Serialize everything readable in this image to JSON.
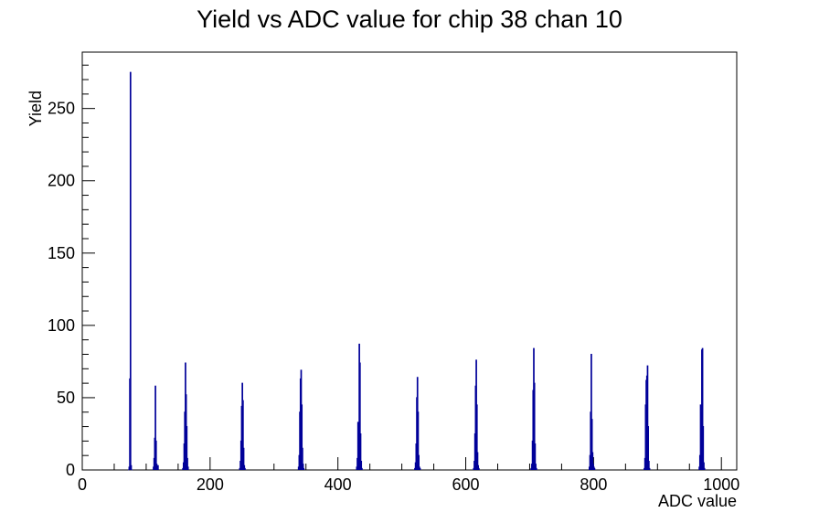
{
  "chart_data": {
    "type": "histogram",
    "title": "Yield vs ADC value for chip 38 chan 10",
    "x_label": "ADC value",
    "y_label": "Yield",
    "color": "#000099",
    "xlim": [
      0,
      1024
    ],
    "ylim": [
      0,
      289
    ],
    "xticks": [
      0,
      200,
      400,
      600,
      800,
      1000
    ],
    "xminorticks": [
      50,
      100,
      150,
      250,
      300,
      350,
      450,
      500,
      550,
      650,
      700,
      750,
      850,
      900,
      950
    ],
    "yticks": [
      0,
      50,
      100,
      150,
      200,
      250
    ],
    "yminorticks": [
      10,
      20,
      30,
      40,
      60,
      70,
      80,
      90,
      110,
      120,
      130,
      140,
      160,
      170,
      180,
      190,
      210,
      220,
      230,
      240,
      260,
      270,
      280
    ],
    "segments": [
      {
        "bins": [
          72,
          73,
          74,
          75,
          76,
          77,
          78
        ],
        "values": [
          0,
          2,
          63,
          275,
          3,
          0
        ]
      },
      {
        "bins": [
          111,
          112,
          113,
          114,
          115,
          116,
          117,
          118,
          119
        ],
        "values": [
          2,
          8,
          22,
          58,
          20,
          4,
          1,
          3
        ]
      },
      {
        "bins": [
          157,
          158,
          159,
          160,
          161,
          162,
          163,
          164,
          165,
          166
        ],
        "values": [
          1,
          5,
          18,
          40,
          74,
          52,
          30,
          8,
          2
        ]
      },
      {
        "bins": [
          246,
          247,
          248,
          249,
          250,
          251,
          252,
          253,
          254,
          255
        ],
        "values": [
          1,
          6,
          20,
          44,
          60,
          48,
          15,
          3,
          1
        ]
      },
      {
        "bins": [
          338,
          339,
          340,
          341,
          342,
          343,
          344,
          345,
          346,
          347
        ],
        "values": [
          2,
          10,
          40,
          63,
          69,
          45,
          15,
          4,
          1
        ]
      },
      {
        "bins": [
          429,
          430,
          431,
          432,
          433,
          434,
          435,
          436,
          437,
          438
        ],
        "values": [
          2,
          8,
          33,
          18,
          87,
          74,
          25,
          6,
          1
        ]
      },
      {
        "bins": [
          520,
          521,
          522,
          523,
          524,
          525,
          526,
          527,
          528,
          529
        ],
        "values": [
          1,
          5,
          18,
          50,
          64,
          40,
          10,
          2,
          1
        ]
      },
      {
        "bins": [
          612,
          613,
          614,
          615,
          616,
          617,
          618,
          619,
          620,
          621
        ],
        "values": [
          1,
          6,
          25,
          58,
          76,
          45,
          12,
          3,
          1
        ]
      },
      {
        "bins": [
          702,
          703,
          704,
          705,
          706,
          707,
          708,
          709,
          710,
          711
        ],
        "values": [
          1,
          4,
          20,
          55,
          84,
          60,
          18,
          4,
          1
        ]
      },
      {
        "bins": [
          793,
          794,
          795,
          796,
          797,
          798,
          799,
          800,
          801,
          802
        ],
        "values": [
          2,
          10,
          40,
          80,
          35,
          12,
          4,
          2,
          1
        ]
      },
      {
        "bins": [
          879,
          880,
          881,
          882,
          883,
          884,
          885,
          886,
          887,
          888
        ],
        "values": [
          1,
          8,
          45,
          62,
          65,
          72,
          30,
          6,
          1
        ]
      },
      {
        "bins": [
          965,
          966,
          967,
          968,
          969,
          970,
          971,
          972,
          973,
          974
        ],
        "values": [
          2,
          10,
          45,
          40,
          83,
          84,
          30,
          5,
          1
        ]
      }
    ]
  }
}
